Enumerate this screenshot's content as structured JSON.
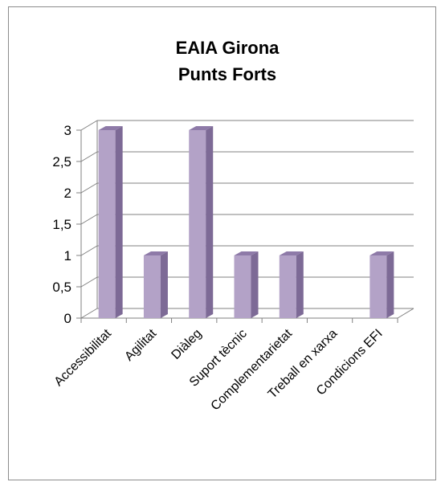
{
  "chart_data": {
    "type": "bar",
    "title_lines": [
      "EAIA Girona",
      "Punts Forts"
    ],
    "categories": [
      "Accessibilitat",
      "Agilitat",
      "Diàleg",
      "Suport tècnic",
      "Complementarietat",
      "Treball en xarxa",
      "Condicions EFI"
    ],
    "values": [
      3,
      1,
      3,
      1,
      1,
      0,
      1
    ],
    "y_ticks": [
      "0",
      "0,5",
      "1",
      "1,5",
      "2",
      "2,5",
      "3"
    ],
    "ylim": [
      0,
      3
    ],
    "grid": true,
    "legend": "none",
    "colors": {
      "bar_front": "#b3a2c7",
      "bar_side": "#7d6a96",
      "bar_top": "#8e7aa8",
      "gridline": "#808080",
      "axis": "#808080"
    }
  }
}
